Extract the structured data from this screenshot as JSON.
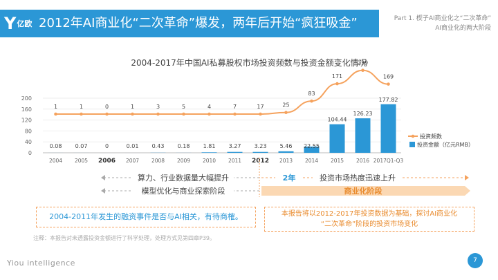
{
  "header": {
    "logo_mark": "Y",
    "logo_text": "亿欧",
    "title": "2012年AI商业化“二次革命”爆发，两年后开始“疯狂吸金”",
    "part_line1": "Part 1. 楔子AI商业化之“二次革命”",
    "part_line2": "AI商业化的两大阶段"
  },
  "chart_data": {
    "type": "bar+line",
    "title": "2004-2017年中国AI私募股权市场投资频数与投资金额变化情况",
    "categories": [
      "2004",
      "2005",
      "2006",
      "2007",
      "2008",
      "2009",
      "2010",
      "2011",
      "2012",
      "2013",
      "2014",
      "2015",
      "2016",
      "2017Q1-Q3"
    ],
    "bold_categories": [
      "2006",
      "2012"
    ],
    "series": [
      {
        "name": "投资频数",
        "kind": "line",
        "color": "#f5a25d",
        "values": [
          1,
          1,
          0,
          1,
          3,
          5,
          4,
          7,
          17,
          25,
          83,
          171,
          239,
          169
        ]
      },
      {
        "name": "投资金额（亿元RMB）",
        "kind": "bar",
        "color": "#2b97d6",
        "values": [
          0.08,
          0.07,
          0,
          0.01,
          0.43,
          0.18,
          1.81,
          3.27,
          3.23,
          5.46,
          22.55,
          104.44,
          126.23,
          177.82
        ]
      }
    ],
    "ylim": [
      0,
      200
    ],
    "yticks": [
      0,
      40,
      80,
      120,
      160,
      200
    ],
    "legend_position": "right"
  },
  "phases": {
    "left_row1": "算力、行业数据量大幅提升",
    "left_row2": "模型优化与商业探索阶段",
    "mid_label": "2年",
    "right_row1": "投资市场热度迅速上升",
    "right_row2": "商业化阶段"
  },
  "boxes": {
    "left": "2004-2011年发生的融资事件是否与AI相关，有待商榷。",
    "right_line1": "本报告将以2012-2017年投资数据为基础，探讨AI商业化",
    "right_line2": "“二次革命”阶段的投资市场变化"
  },
  "note": "注释：本报告对未透露投资金额进行了科学处理，处理方式见第四章P39。",
  "footer": {
    "brand": "Yiou intelligence",
    "page": "7"
  },
  "colors": {
    "brand_blue": "#2b97d6",
    "accent_orange": "#f5a25d",
    "phase_bar_orange": "#fbd8b3"
  }
}
